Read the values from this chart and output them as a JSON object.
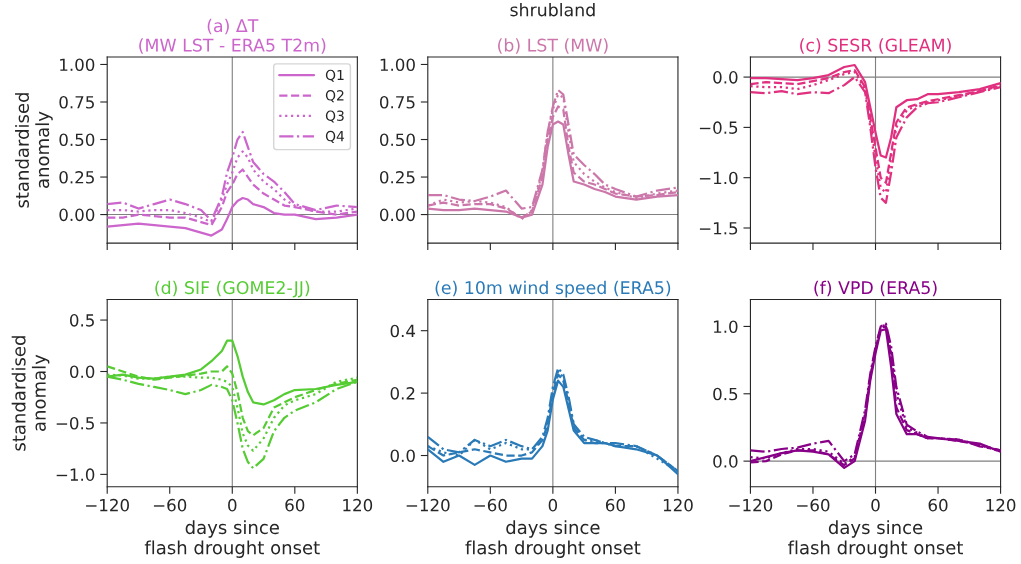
{
  "chart_data": [
    {
      "type": "line",
      "title": "(a) ΔT\n(MW LST - ERA5 T2m)",
      "ylabel": "standardised\nanomaly",
      "x": [
        -120,
        -105,
        -90,
        -75,
        -60,
        -45,
        -30,
        -20,
        -10,
        -5,
        0,
        5,
        10,
        15,
        20,
        30,
        40,
        50,
        60,
        80,
        100,
        120
      ],
      "xlim": [
        -120,
        120
      ],
      "xticks": [
        {
          "value": -120,
          "label": null
        },
        {
          "value": -60,
          "label": null
        },
        {
          "value": 0,
          "label": null
        },
        {
          "value": 60,
          "label": null
        },
        {
          "value": 120,
          "label": null
        }
      ],
      "ylim": [
        -0.19,
        1.05
      ],
      "yticks": [
        {
          "value": 0,
          "label": "0.00"
        },
        {
          "value": 0.25,
          "label": "0.25"
        },
        {
          "value": 0.5,
          "label": "0.50"
        },
        {
          "value": 0.75,
          "label": "0.75"
        },
        {
          "value": 1,
          "label": "1.00"
        }
      ],
      "tick_labels": "y",
      "legend": "top right",
      "grid": false,
      "ref_lines": [
        {
          "axis": "x",
          "value": 0,
          "color": "#808080"
        },
        {
          "axis": "y",
          "value": 0,
          "color": "#808080"
        }
      ],
      "series": [
        {
          "name": "Q1",
          "color": "#cc66cc",
          "line_style": "solid",
          "values": [
            -0.08,
            -0.07,
            -0.06,
            -0.07,
            -0.08,
            -0.09,
            -0.12,
            -0.14,
            -0.1,
            -0.03,
            0.05,
            0.09,
            0.11,
            0.1,
            0.07,
            0.05,
            0.01,
            0.0,
            0.0,
            -0.03,
            -0.02,
            0.0
          ]
        },
        {
          "name": "Q2",
          "color": "#cc66cc",
          "line_style": "dashed",
          "values": [
            -0.02,
            -0.02,
            0.0,
            -0.01,
            -0.02,
            -0.02,
            -0.05,
            -0.07,
            0.05,
            0.15,
            0.2,
            0.27,
            0.3,
            0.25,
            0.2,
            0.14,
            0.1,
            0.06,
            0.05,
            0.02,
            0.0,
            0.02
          ]
        },
        {
          "name": "Q3",
          "color": "#cc66cc",
          "line_style": "dotted",
          "values": [
            0.03,
            0.03,
            0.02,
            0.03,
            0.03,
            0.01,
            -0.02,
            -0.05,
            0.1,
            0.2,
            0.28,
            0.38,
            0.42,
            0.38,
            0.3,
            0.22,
            0.17,
            0.1,
            0.06,
            0.02,
            0.02,
            0.04
          ]
        },
        {
          "name": "Q4",
          "color": "#cc66cc",
          "line_style": "dashdot",
          "values": [
            0.07,
            0.08,
            0.04,
            0.07,
            0.1,
            0.07,
            0.03,
            -0.04,
            0.12,
            0.28,
            0.38,
            0.5,
            0.55,
            0.45,
            0.35,
            0.27,
            0.22,
            0.15,
            0.07,
            0.03,
            0.06,
            0.05
          ]
        }
      ]
    },
    {
      "type": "line",
      "title": "(b) LST (MW)",
      "annotations": [
        "shrubland"
      ],
      "x": [
        -120,
        -105,
        -90,
        -75,
        -60,
        -45,
        -30,
        -20,
        -10,
        -5,
        0,
        5,
        10,
        15,
        20,
        30,
        40,
        50,
        60,
        80,
        100,
        120
      ],
      "xlim": [
        -120,
        120
      ],
      "xticks": [
        {
          "value": -120,
          "label": null
        },
        {
          "value": -60,
          "label": null
        },
        {
          "value": 0,
          "label": null
        },
        {
          "value": 60,
          "label": null
        },
        {
          "value": 120,
          "label": null
        }
      ],
      "ylim": [
        -0.19,
        1.05
      ],
      "yticks": [
        {
          "value": 0,
          "label": "0.00"
        },
        {
          "value": 0.25,
          "label": "0.25"
        },
        {
          "value": 0.5,
          "label": "0.50"
        },
        {
          "value": 0.75,
          "label": "0.75"
        },
        {
          "value": 1,
          "label": "1.00"
        }
      ],
      "tick_labels": "y",
      "grid": false,
      "ref_lines": [
        {
          "axis": "x",
          "value": 0,
          "color": "#808080"
        },
        {
          "axis": "y",
          "value": 0,
          "color": "#808080"
        }
      ],
      "series": [
        {
          "color": "#cc77aa",
          "line_style": "solid",
          "values": [
            0.04,
            0.03,
            0.03,
            0.04,
            0.03,
            0.02,
            -0.02,
            0.0,
            0.2,
            0.45,
            0.6,
            0.62,
            0.6,
            0.4,
            0.22,
            0.2,
            0.17,
            0.15,
            0.12,
            0.1,
            0.12,
            0.13
          ]
        },
        {
          "color": "#cc77aa",
          "line_style": "dashed",
          "values": [
            0.06,
            0.08,
            0.06,
            0.07,
            0.07,
            0.04,
            -0.02,
            0.02,
            0.25,
            0.5,
            0.65,
            0.72,
            0.7,
            0.45,
            0.28,
            0.22,
            0.2,
            0.17,
            0.14,
            0.12,
            0.13,
            0.15
          ]
        },
        {
          "color": "#cc77aa",
          "line_style": "dotted",
          "values": [
            0.06,
            0.1,
            0.08,
            0.09,
            0.08,
            0.05,
            -0.03,
            0.03,
            0.28,
            0.55,
            0.7,
            0.8,
            0.78,
            0.55,
            0.35,
            0.27,
            0.22,
            0.18,
            0.15,
            0.11,
            0.14,
            0.16
          ]
        },
        {
          "color": "#cc77aa",
          "line_style": "dashdot",
          "values": [
            0.13,
            0.13,
            0.1,
            0.09,
            0.12,
            0.16,
            0.04,
            0.05,
            0.3,
            0.55,
            0.72,
            0.83,
            0.8,
            0.6,
            0.4,
            0.33,
            0.27,
            0.2,
            0.17,
            0.12,
            0.16,
            0.18
          ]
        }
      ]
    },
    {
      "type": "line",
      "title": "(c) SESR (GLEAM)",
      "x": [
        -120,
        -105,
        -90,
        -75,
        -60,
        -45,
        -30,
        -20,
        -10,
        -5,
        0,
        5,
        10,
        15,
        20,
        30,
        40,
        50,
        60,
        80,
        100,
        120
      ],
      "xlim": [
        -120,
        120
      ],
      "xticks": [
        {
          "value": -120,
          "label": null
        },
        {
          "value": -60,
          "label": null
        },
        {
          "value": 0,
          "label": null
        },
        {
          "value": 60,
          "label": null
        },
        {
          "value": 120,
          "label": null
        }
      ],
      "ylim": [
        -1.65,
        0.2
      ],
      "yticks": [
        {
          "value": -1.5,
          "label": "−1.5"
        },
        {
          "value": -1,
          "label": "−1.0"
        },
        {
          "value": -0.5,
          "label": "−0.5"
        },
        {
          "value": 0,
          "label": "0.0"
        }
      ],
      "tick_labels": "y",
      "grid": false,
      "ref_lines": [
        {
          "axis": "x",
          "value": 0,
          "color": "#808080"
        },
        {
          "axis": "y",
          "value": 0,
          "color": "#808080"
        }
      ],
      "series": [
        {
          "color": "#e0307f",
          "line_style": "solid",
          "values": [
            -0.01,
            -0.01,
            -0.02,
            -0.03,
            -0.01,
            0.02,
            0.1,
            0.12,
            -0.05,
            -0.3,
            -0.55,
            -0.78,
            -0.8,
            -0.6,
            -0.3,
            -0.23,
            -0.22,
            -0.17,
            -0.17,
            -0.15,
            -0.12,
            -0.06
          ]
        },
        {
          "color": "#e0307f",
          "line_style": "dashed",
          "values": [
            -0.07,
            -0.05,
            -0.06,
            -0.07,
            -0.04,
            -0.01,
            0.05,
            0.07,
            -0.1,
            -0.4,
            -0.7,
            -1.0,
            -1.05,
            -0.75,
            -0.45,
            -0.3,
            -0.27,
            -0.24,
            -0.22,
            -0.18,
            -0.14,
            -0.08
          ]
        },
        {
          "color": "#e0307f",
          "line_style": "dotted",
          "values": [
            -0.09,
            -0.1,
            -0.1,
            -0.12,
            -0.08,
            -0.03,
            0.03,
            0.05,
            -0.12,
            -0.45,
            -0.8,
            -1.1,
            -1.15,
            -0.8,
            -0.5,
            -0.33,
            -0.28,
            -0.25,
            -0.23,
            -0.19,
            -0.14,
            -0.09
          ]
        },
        {
          "color": "#e0307f",
          "line_style": "dashdot",
          "values": [
            -0.15,
            -0.16,
            -0.14,
            -0.17,
            -0.15,
            -0.16,
            -0.08,
            0.0,
            -0.15,
            -0.5,
            -0.9,
            -1.2,
            -1.25,
            -0.95,
            -0.6,
            -0.4,
            -0.3,
            -0.26,
            -0.25,
            -0.2,
            -0.15,
            -0.1
          ]
        }
      ]
    },
    {
      "type": "line",
      "title": "(d) SIF (GOME2-JJ)",
      "ylabel": "standardised\nanomaly",
      "xlabel": "days since\nflash drought onset",
      "x": [
        -120,
        -105,
        -90,
        -75,
        -60,
        -45,
        -30,
        -20,
        -10,
        -5,
        0,
        5,
        10,
        15,
        20,
        30,
        40,
        50,
        60,
        80,
        100,
        120
      ],
      "xlim": [
        -120,
        120
      ],
      "xticks": [
        {
          "value": -120,
          "label": "−120"
        },
        {
          "value": -60,
          "label": "−60"
        },
        0,
        60,
        120
      ],
      "ylim": [
        -1.12,
        0.7
      ],
      "yticks": [
        {
          "value": -1,
          "label": "−1.0"
        },
        {
          "value": -0.5,
          "label": "−0.5"
        },
        {
          "value": 0,
          "label": "0.0"
        },
        {
          "value": 0.5,
          "label": "0.5"
        }
      ],
      "grid": false,
      "ref_lines": [
        {
          "axis": "x",
          "value": 0,
          "color": "#808080"
        }
      ],
      "series": [
        {
          "color": "#55cc33",
          "line_style": "solid",
          "values": [
            -0.05,
            -0.03,
            -0.06,
            -0.07,
            -0.05,
            -0.03,
            0.02,
            0.1,
            0.2,
            0.3,
            0.3,
            0.15,
            -0.05,
            -0.2,
            -0.3,
            -0.32,
            -0.28,
            -0.22,
            -0.18,
            -0.17,
            -0.13,
            -0.1
          ]
        },
        {
          "color": "#55cc33",
          "line_style": "dashed",
          "values": [
            0.05,
            0.0,
            -0.05,
            -0.08,
            -0.06,
            -0.04,
            -0.02,
            0.0,
            0.0,
            0.05,
            -0.02,
            -0.2,
            -0.45,
            -0.58,
            -0.62,
            -0.55,
            -0.35,
            -0.3,
            -0.25,
            -0.18,
            -0.12,
            -0.08
          ]
        },
        {
          "color": "#55cc33",
          "line_style": "dotted",
          "values": [
            -0.03,
            -0.04,
            -0.07,
            -0.07,
            -0.05,
            -0.05,
            -0.06,
            -0.06,
            -0.08,
            -0.1,
            -0.15,
            -0.35,
            -0.6,
            -0.72,
            -0.77,
            -0.65,
            -0.45,
            -0.33,
            -0.28,
            -0.22,
            -0.1,
            -0.06
          ]
        },
        {
          "color": "#55cc33",
          "line_style": "dashdot",
          "values": [
            -0.05,
            -0.08,
            -0.12,
            -0.15,
            -0.18,
            -0.22,
            -0.18,
            -0.13,
            -0.15,
            -0.17,
            -0.28,
            -0.5,
            -0.75,
            -0.88,
            -0.94,
            -0.85,
            -0.58,
            -0.45,
            -0.38,
            -0.3,
            -0.17,
            -0.1
          ]
        }
      ]
    },
    {
      "type": "line",
      "title": "(e) 10m wind speed (ERA5)",
      "xlabel": "days since\nflash drought onset",
      "x": [
        -120,
        -105,
        -90,
        -75,
        -60,
        -45,
        -30,
        -20,
        -10,
        -5,
        0,
        5,
        10,
        15,
        20,
        30,
        40,
        50,
        60,
        80,
        100,
        120
      ],
      "xlim": [
        -120,
        120
      ],
      "xticks": [
        {
          "value": -120,
          "label": "−120"
        },
        {
          "value": -60,
          "label": "−60"
        },
        0,
        60,
        120
      ],
      "ylim": [
        -0.1,
        0.5
      ],
      "yticks": [
        {
          "value": 0,
          "label": "0.0"
        },
        {
          "value": 0.2,
          "label": "0.2"
        },
        {
          "value": 0.4,
          "label": "0.4"
        }
      ],
      "grid": false,
      "ref_lines": [
        {
          "axis": "x",
          "value": 0,
          "color": "#808080"
        }
      ],
      "series": [
        {
          "color": "#2a7ab8",
          "line_style": "solid",
          "values": [
            0.02,
            -0.02,
            0.0,
            -0.03,
            0.0,
            -0.02,
            -0.01,
            -0.01,
            0.03,
            0.08,
            0.18,
            0.24,
            0.22,
            0.15,
            0.08,
            0.04,
            0.04,
            0.04,
            0.03,
            0.02,
            0.0,
            -0.06
          ]
        },
        {
          "color": "#2a7ab8",
          "line_style": "dashed",
          "values": [
            0.03,
            0.0,
            0.01,
            0.02,
            0.01,
            0.0,
            0.0,
            0.01,
            0.05,
            0.1,
            0.2,
            0.26,
            0.24,
            0.17,
            0.09,
            0.05,
            0.04,
            0.04,
            0.03,
            0.03,
            0.0,
            -0.05
          ]
        },
        {
          "color": "#2a7ab8",
          "line_style": "dotted",
          "values": [
            0.03,
            0.01,
            0.0,
            0.05,
            0.02,
            0.04,
            0.02,
            0.02,
            0.05,
            0.1,
            0.2,
            0.27,
            0.25,
            0.18,
            0.1,
            0.05,
            0.05,
            0.04,
            0.03,
            0.03,
            -0.01,
            -0.05
          ]
        },
        {
          "color": "#2a7ab8",
          "line_style": "dashdot",
          "values": [
            0.06,
            0.02,
            0.01,
            0.05,
            0.03,
            0.05,
            0.03,
            0.02,
            0.06,
            0.12,
            0.22,
            0.28,
            0.26,
            0.19,
            0.1,
            0.06,
            0.05,
            0.04,
            0.04,
            0.03,
            0.0,
            -0.05
          ]
        }
      ]
    },
    {
      "type": "line",
      "title": "(f) VPD (ERA5)",
      "xlabel": "days since\nflash drought onset",
      "x": [
        -120,
        -105,
        -90,
        -75,
        -60,
        -45,
        -30,
        -20,
        -10,
        -5,
        0,
        5,
        10,
        15,
        20,
        30,
        40,
        50,
        60,
        80,
        100,
        120
      ],
      "xlim": [
        -120,
        120
      ],
      "xticks": [
        {
          "value": -120,
          "label": "−120"
        },
        {
          "value": -60,
          "label": "−60"
        },
        0,
        60,
        120
      ],
      "ylim": [
        -0.19,
        1.2
      ],
      "yticks": [
        {
          "value": 0,
          "label": "0.0"
        },
        {
          "value": 0.5,
          "label": "0.5"
        },
        {
          "value": 1,
          "label": "1.0"
        }
      ],
      "grid": false,
      "ref_lines": [
        {
          "axis": "x",
          "value": 0,
          "color": "#808080"
        },
        {
          "axis": "y",
          "value": 0,
          "color": "#808080"
        }
      ],
      "series": [
        {
          "color": "#880088",
          "line_style": "solid",
          "values": [
            0.0,
            0.03,
            0.06,
            0.08,
            0.07,
            0.05,
            -0.05,
            0.0,
            0.3,
            0.6,
            0.8,
            0.97,
            0.98,
            0.7,
            0.35,
            0.2,
            0.2,
            0.17,
            0.17,
            0.15,
            0.13,
            0.07
          ]
        },
        {
          "color": "#880088",
          "line_style": "dashed",
          "values": [
            -0.01,
            0.0,
            0.05,
            0.08,
            0.08,
            0.05,
            -0.03,
            0.02,
            0.33,
            0.62,
            0.82,
            0.99,
            1.0,
            0.78,
            0.4,
            0.23,
            0.2,
            0.17,
            0.17,
            0.15,
            0.12,
            0.08
          ]
        },
        {
          "color": "#880088",
          "line_style": "dotted",
          "values": [
            0.03,
            0.02,
            0.06,
            0.09,
            0.09,
            0.07,
            -0.02,
            0.03,
            0.35,
            0.63,
            0.83,
            1.0,
            1.01,
            0.8,
            0.5,
            0.25,
            0.21,
            0.17,
            0.17,
            0.16,
            0.12,
            0.07
          ]
        },
        {
          "color": "#880088",
          "line_style": "dashdot",
          "values": [
            0.08,
            0.07,
            0.09,
            0.1,
            0.13,
            0.15,
            0.0,
            0.05,
            0.38,
            0.65,
            0.85,
            1.0,
            1.02,
            0.85,
            0.55,
            0.27,
            0.22,
            0.18,
            0.17,
            0.16,
            0.11,
            0.08
          ]
        }
      ]
    }
  ]
}
